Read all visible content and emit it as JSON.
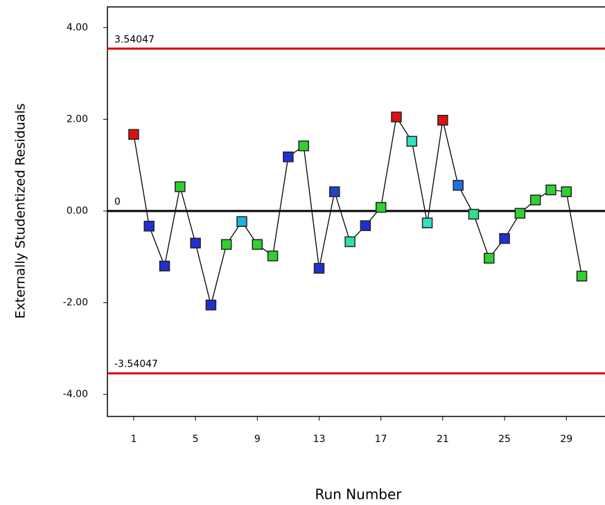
{
  "chart_data": {
    "type": "line",
    "ylabel": "Externally Studentized Residuals",
    "xlabel": "Run Number",
    "x": [
      1,
      2,
      3,
      4,
      5,
      6,
      7,
      8,
      9,
      10,
      11,
      12,
      13,
      14,
      15,
      16,
      17,
      18,
      19,
      20,
      21,
      22,
      23,
      24,
      25,
      26,
      27,
      28,
      29,
      30
    ],
    "series": [
      {
        "color": "#000000",
        "values": [
          1.67,
          -0.33,
          -1.2,
          0.53,
          -0.7,
          -2.05,
          -0.73,
          -0.23,
          -0.73,
          -0.98,
          1.18,
          1.42,
          -1.25,
          0.42,
          -0.67,
          -0.32,
          0.08,
          2.05,
          1.52,
          -0.26,
          1.98,
          0.56,
          -0.07,
          -1.03,
          -0.6,
          -0.05,
          0.24,
          0.46,
          0.42,
          -1.42
        ],
        "point_colors": [
          "#e01010",
          "#2030d0",
          "#2030d0",
          "#30d030",
          "#2030d0",
          "#2030d0",
          "#30d030",
          "#20b0e0",
          "#30d030",
          "#30d030",
          "#2030d0",
          "#30d030",
          "#2030d0",
          "#2040d0",
          "#30e0a0",
          "#2030d0",
          "#30d030",
          "#e01010",
          "#30e0c0",
          "#30e0c0",
          "#e01010",
          "#2070e0",
          "#30e090",
          "#30d030",
          "#2030d0",
          "#30d030",
          "#30d030",
          "#30d030",
          "#30d030",
          "#30d030"
        ]
      }
    ],
    "reference_lines": [
      {
        "value": 3.54047,
        "color": "#e00000"
      },
      {
        "value": 0,
        "color": "#000000"
      },
      {
        "value": -3.54047,
        "color": "#e00000"
      }
    ],
    "xlim": [
      -0.7,
      31.5
    ],
    "xticks": [
      1,
      5,
      9,
      13,
      17,
      21,
      25,
      29
    ],
    "ylim": [
      -4.48,
      4.45
    ],
    "yticks": [
      {
        "value": 4,
        "label": "4.00"
      },
      {
        "value": 2,
        "label": "2.00"
      },
      {
        "value": 0,
        "label": "0.00"
      },
      {
        "value": -2,
        "label": "-2.00"
      },
      {
        "value": -4,
        "label": "-4.00"
      }
    ]
  }
}
